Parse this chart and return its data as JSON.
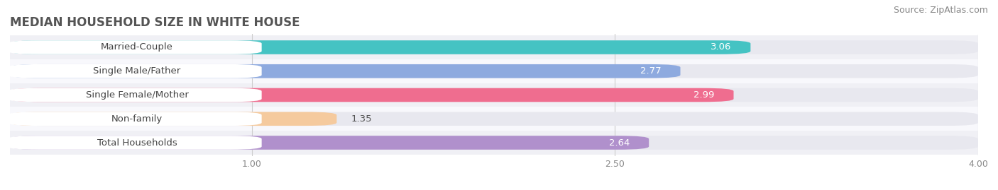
{
  "title": "MEDIAN HOUSEHOLD SIZE IN WHITE HOUSE",
  "source": "Source: ZipAtlas.com",
  "categories": [
    "Married-Couple",
    "Single Male/Father",
    "Single Female/Mother",
    "Non-family",
    "Total Households"
  ],
  "values": [
    3.06,
    2.77,
    2.99,
    1.35,
    2.64
  ],
  "bar_colors": [
    "#45c3c3",
    "#8eaadf",
    "#ef6d8f",
    "#f5ca9e",
    "#b090cc"
  ],
  "bar_bg_color": "#e8e8ef",
  "row_bg_colors": [
    "#f0f0f5",
    "#f8f8fc"
  ],
  "xlim_start": 0.0,
  "xlim_end": 4.0,
  "xticks": [
    1.0,
    2.5,
    4.0
  ],
  "xtick_labels": [
    "1.00",
    "2.50",
    "4.00"
  ],
  "title_fontsize": 12,
  "source_fontsize": 9,
  "label_fontsize": 9.5,
  "value_fontsize": 9.5,
  "background_color": "#ffffff",
  "bar_height": 0.58
}
